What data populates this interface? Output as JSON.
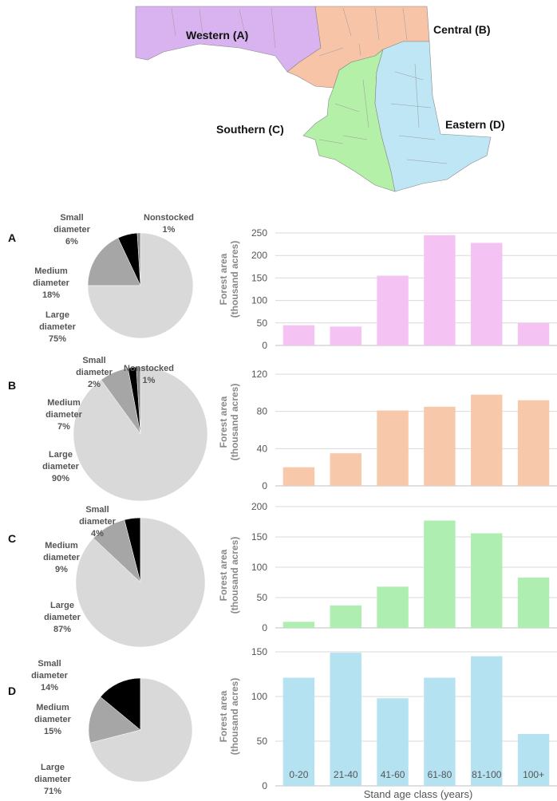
{
  "map": {
    "regions": [
      {
        "id": "A",
        "label": "Western (A)",
        "color": "#d9b3f0"
      },
      {
        "id": "B",
        "label": "Central (B)",
        "color": "#f7c4a8"
      },
      {
        "id": "C",
        "label": "Southern (C)",
        "color": "#b4f0a8"
      },
      {
        "id": "D",
        "label": "Eastern (D)",
        "color": "#bfe6f5"
      }
    ]
  },
  "x_axis_title": "Stand age class (years)",
  "y_axis_title_line1": "Forest area",
  "y_axis_title_line2": "(thousand acres)",
  "chart_data": [
    {
      "type": "pie",
      "panel": "A",
      "slices": [
        {
          "label": "Nonstocked",
          "value": 1,
          "pct": "1%",
          "color": "#888888"
        },
        {
          "label": "Small diameter",
          "value": 6,
          "pct": "6%",
          "color": "#000000"
        },
        {
          "label": "Medium diameter",
          "value": 18,
          "pct": "18%",
          "color": "#a6a6a6"
        },
        {
          "label": "Large diameter",
          "value": 75,
          "pct": "75%",
          "color": "#d9d9d9"
        }
      ]
    },
    {
      "type": "bar",
      "panel": "A",
      "color": "#f5c3f3",
      "categories": [
        "0-20",
        "21-40",
        "41-60",
        "61-80",
        "81-100",
        "100+"
      ],
      "values": [
        45,
        42,
        155,
        245,
        228,
        50
      ],
      "ylim": [
        0,
        250
      ],
      "yticks": [
        0,
        50,
        100,
        150,
        200,
        250
      ],
      "ylabel": "Forest area (thousand acres)"
    },
    {
      "type": "pie",
      "panel": "B",
      "slices": [
        {
          "label": "Nonstocked",
          "value": 1,
          "pct": "1%",
          "color": "#888888"
        },
        {
          "label": "Small diameter",
          "value": 2,
          "pct": "2%",
          "color": "#000000"
        },
        {
          "label": "Medium diameter",
          "value": 7,
          "pct": "7%",
          "color": "#a6a6a6"
        },
        {
          "label": "Large diameter",
          "value": 90,
          "pct": "90%",
          "color": "#d9d9d9"
        }
      ]
    },
    {
      "type": "bar",
      "panel": "B",
      "color": "#f8c8ab",
      "categories": [
        "0-20",
        "21-40",
        "41-60",
        "61-80",
        "81-100",
        "100+"
      ],
      "values": [
        20,
        35,
        81,
        85,
        98,
        92
      ],
      "ylim": [
        0,
        120
      ],
      "yticks": [
        0,
        40,
        80,
        120
      ],
      "ylabel": "Forest area (thousand acres)"
    },
    {
      "type": "pie",
      "panel": "C",
      "slices": [
        {
          "label": "Small diameter",
          "value": 4,
          "pct": "4%",
          "color": "#000000"
        },
        {
          "label": "Medium diameter",
          "value": 9,
          "pct": "9%",
          "color": "#a6a6a6"
        },
        {
          "label": "Large diameter",
          "value": 87,
          "pct": "87%",
          "color": "#d9d9d9"
        }
      ]
    },
    {
      "type": "bar",
      "panel": "C",
      "color": "#aeeeb0",
      "categories": [
        "0-20",
        "21-40",
        "41-60",
        "61-80",
        "81-100",
        "100+"
      ],
      "values": [
        10,
        37,
        68,
        177,
        156,
        83
      ],
      "ylim": [
        0,
        200
      ],
      "yticks": [
        0,
        50,
        100,
        150,
        200
      ],
      "ylabel": "Forest area (thousand acres)"
    },
    {
      "type": "pie",
      "panel": "D",
      "slices": [
        {
          "label": "Small diameter",
          "value": 14,
          "pct": "14%",
          "color": "#000000"
        },
        {
          "label": "Medium diameter",
          "value": 15,
          "pct": "15%",
          "color": "#a6a6a6"
        },
        {
          "label": "Large diameter",
          "value": 71,
          "pct": "71%",
          "color": "#d9d9d9"
        }
      ]
    },
    {
      "type": "bar",
      "panel": "D",
      "color": "#b5e2f1",
      "categories": [
        "0-20",
        "21-40",
        "41-60",
        "61-80",
        "81-100",
        "100+"
      ],
      "values": [
        121,
        149,
        98,
        121,
        145,
        58
      ],
      "ylim": [
        0,
        150
      ],
      "yticks": [
        0,
        50,
        100,
        150
      ],
      "ylabel": "Forest area (thousand acres)"
    }
  ]
}
